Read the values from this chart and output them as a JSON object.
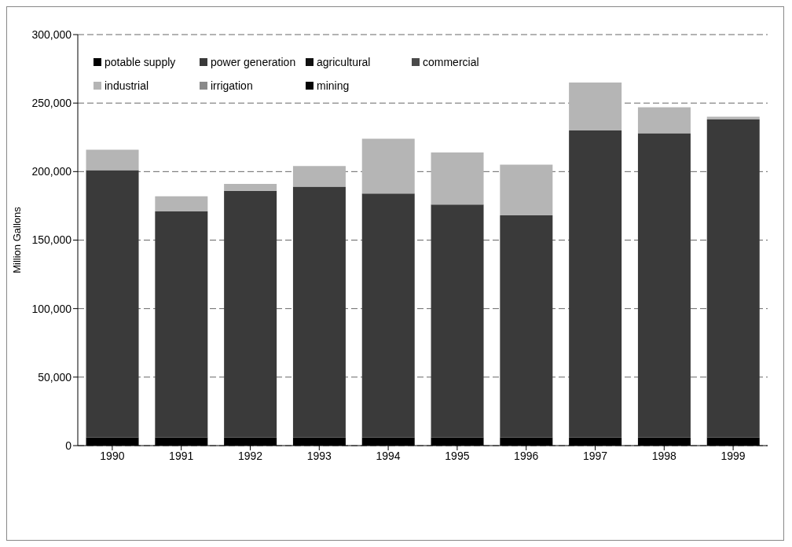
{
  "chart_data": {
    "type": "bar",
    "ylabel": "Million Gallons",
    "categories": [
      "1990",
      "1991",
      "1992",
      "1993",
      "1994",
      "1995",
      "1996",
      "1997",
      "1998",
      "1999"
    ],
    "stacked": true,
    "ylim": [
      0,
      300000
    ],
    "yticks": [
      {
        "value": 0,
        "label": "0"
      },
      {
        "value": 50000,
        "label": "50,000"
      },
      {
        "value": 100000,
        "label": "100,000"
      },
      {
        "value": 150000,
        "label": "150,000"
      },
      {
        "value": 200000,
        "label": "200,000"
      },
      {
        "value": 250000,
        "label": "250,000"
      },
      {
        "value": 300000,
        "label": "300,000"
      }
    ],
    "grid": "y",
    "legend": "top left",
    "series": [
      {
        "name": "potable supply",
        "color": "#000000",
        "values": [
          6000,
          6000,
          6000,
          6000,
          6000,
          6000,
          6000,
          6000,
          6000,
          6000
        ]
      },
      {
        "name": "power generation",
        "color": "#3a3a3a",
        "values": [
          195000,
          165000,
          180000,
          183000,
          178000,
          170000,
          162000,
          224000,
          222000,
          232000
        ]
      },
      {
        "name": "agricultural",
        "color": "#111111",
        "values": [
          0,
          0,
          0,
          0,
          0,
          0,
          0,
          0,
          0,
          0
        ]
      },
      {
        "name": "commercial",
        "color": "#4a4a4a",
        "values": [
          0,
          0,
          0,
          0,
          0,
          0,
          0,
          0,
          0,
          0
        ]
      },
      {
        "name": "industrial",
        "color": "#b5b5b5",
        "values": [
          15000,
          11000,
          5000,
          15000,
          40000,
          38000,
          37000,
          35000,
          19000,
          2000
        ]
      },
      {
        "name": "irrigation",
        "color": "#8a8a8a",
        "values": [
          0,
          0,
          0,
          0,
          0,
          0,
          0,
          0,
          0,
          0
        ]
      },
      {
        "name": "mining",
        "color": "#050505",
        "values": [
          0,
          0,
          0,
          0,
          0,
          0,
          0,
          0,
          0,
          0
        ]
      }
    ]
  }
}
